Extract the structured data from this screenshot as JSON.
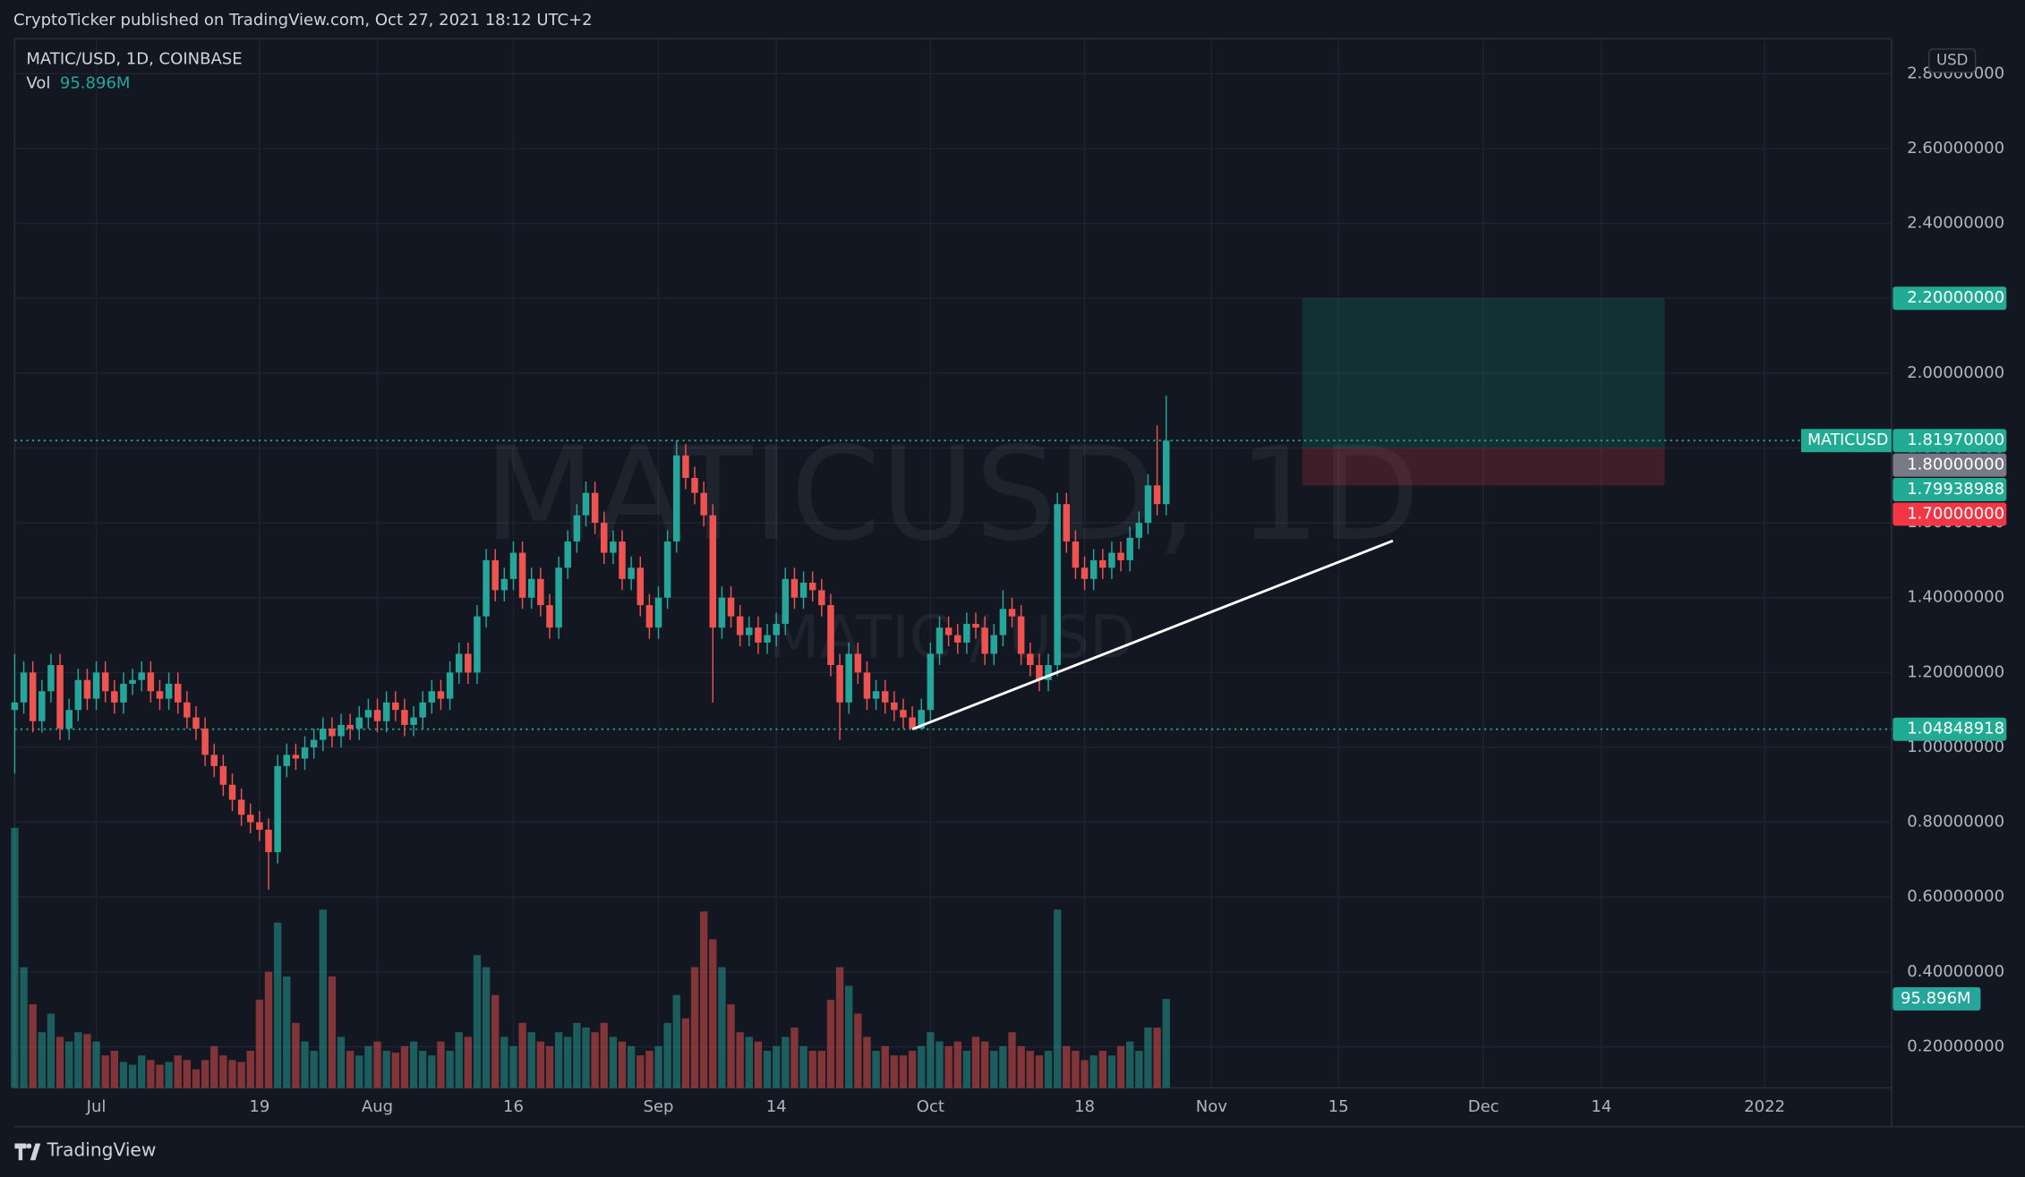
{
  "header": {
    "publisher": "CryptoTicker published on TradingView.com, Oct 27, 2021 18:12 UTC+2"
  },
  "footer": {
    "brand": "TradingView"
  },
  "chart_data": {
    "type": "candlestick",
    "title": "MATIC/USD, 1D, COINBASE",
    "currency": "USD",
    "up_color": "#26a69a",
    "down_color": "#ef5350",
    "grid": true,
    "watermark": {
      "title": "MATICUSD, 1D",
      "subtitle": "MATIC / USD"
    },
    "x": [
      "2021-06-22",
      "2021-06-23",
      "2021-06-24",
      "2021-06-25",
      "2021-06-26",
      "2021-06-27",
      "2021-06-28",
      "2021-06-29",
      "2021-06-30",
      "2021-07-01",
      "2021-07-02",
      "2021-07-03",
      "2021-07-04",
      "2021-07-05",
      "2021-07-06",
      "2021-07-07",
      "2021-07-08",
      "2021-07-09",
      "2021-07-10",
      "2021-07-11",
      "2021-07-12",
      "2021-07-13",
      "2021-07-14",
      "2021-07-15",
      "2021-07-16",
      "2021-07-17",
      "2021-07-18",
      "2021-07-19",
      "2021-07-20",
      "2021-07-21",
      "2021-07-22",
      "2021-07-23",
      "2021-07-24",
      "2021-07-25",
      "2021-07-26",
      "2021-07-27",
      "2021-07-28",
      "2021-07-29",
      "2021-07-30",
      "2021-07-31",
      "2021-08-01",
      "2021-08-02",
      "2021-08-03",
      "2021-08-04",
      "2021-08-05",
      "2021-08-06",
      "2021-08-07",
      "2021-08-08",
      "2021-08-09",
      "2021-08-10",
      "2021-08-11",
      "2021-08-12",
      "2021-08-13",
      "2021-08-14",
      "2021-08-15",
      "2021-08-16",
      "2021-08-17",
      "2021-08-18",
      "2021-08-19",
      "2021-08-20",
      "2021-08-21",
      "2021-08-22",
      "2021-08-23",
      "2021-08-24",
      "2021-08-25",
      "2021-08-26",
      "2021-08-27",
      "2021-08-28",
      "2021-08-29",
      "2021-08-30",
      "2021-08-31",
      "2021-09-01",
      "2021-09-02",
      "2021-09-03",
      "2021-09-04",
      "2021-09-05",
      "2021-09-06",
      "2021-09-07",
      "2021-09-08",
      "2021-09-09",
      "2021-09-10",
      "2021-09-11",
      "2021-09-12",
      "2021-09-13",
      "2021-09-14",
      "2021-09-15",
      "2021-09-16",
      "2021-09-17",
      "2021-09-18",
      "2021-09-19",
      "2021-09-20",
      "2021-09-21",
      "2021-09-22",
      "2021-09-23",
      "2021-09-24",
      "2021-09-25",
      "2021-09-26",
      "2021-09-27",
      "2021-09-28",
      "2021-09-29",
      "2021-09-30",
      "2021-10-01",
      "2021-10-02",
      "2021-10-03",
      "2021-10-04",
      "2021-10-05",
      "2021-10-06",
      "2021-10-07",
      "2021-10-08",
      "2021-10-09",
      "2021-10-10",
      "2021-10-11",
      "2021-10-12",
      "2021-10-13",
      "2021-10-14",
      "2021-10-15",
      "2021-10-16",
      "2021-10-17",
      "2021-10-18",
      "2021-10-19",
      "2021-10-20",
      "2021-10-21",
      "2021-10-22",
      "2021-10-23",
      "2021-10-24",
      "2021-10-25",
      "2021-10-26",
      "2021-10-27"
    ],
    "open": [
      1.1,
      1.12,
      1.2,
      1.07,
      1.15,
      1.22,
      1.05,
      1.1,
      1.18,
      1.13,
      1.2,
      1.15,
      1.12,
      1.17,
      1.18,
      1.2,
      1.15,
      1.13,
      1.17,
      1.12,
      1.08,
      1.05,
      0.98,
      0.95,
      0.9,
      0.86,
      0.82,
      0.8,
      0.78,
      0.72,
      0.95,
      0.98,
      0.97,
      1.0,
      1.02,
      1.05,
      1.03,
      1.06,
      1.05,
      1.08,
      1.1,
      1.07,
      1.12,
      1.1,
      1.06,
      1.08,
      1.12,
      1.15,
      1.13,
      1.2,
      1.25,
      1.2,
      1.35,
      1.5,
      1.42,
      1.45,
      1.52,
      1.4,
      1.45,
      1.38,
      1.32,
      1.48,
      1.55,
      1.62,
      1.68,
      1.6,
      1.52,
      1.55,
      1.45,
      1.48,
      1.38,
      1.32,
      1.4,
      1.55,
      1.78,
      1.72,
      1.68,
      1.62,
      1.32,
      1.4,
      1.35,
      1.3,
      1.32,
      1.28,
      1.3,
      1.33,
      1.45,
      1.4,
      1.44,
      1.42,
      1.38,
      1.22,
      1.12,
      1.25,
      1.2,
      1.13,
      1.15,
      1.12,
      1.1,
      1.08,
      1.05,
      1.1,
      1.25,
      1.32,
      1.3,
      1.28,
      1.33,
      1.32,
      1.25,
      1.3,
      1.37,
      1.35,
      1.25,
      1.22,
      1.18,
      1.22,
      1.65,
      1.55,
      1.48,
      1.45,
      1.5,
      1.48,
      1.52,
      1.5,
      1.56,
      1.6,
      1.7,
      1.65
    ],
    "high": [
      1.25,
      1.23,
      1.23,
      1.18,
      1.25,
      1.25,
      1.13,
      1.21,
      1.21,
      1.23,
      1.23,
      1.18,
      1.2,
      1.21,
      1.23,
      1.23,
      1.18,
      1.2,
      1.2,
      1.15,
      1.11,
      1.08,
      1.01,
      0.98,
      0.93,
      0.89,
      0.85,
      0.83,
      0.81,
      0.98,
      1.01,
      1.01,
      1.03,
      1.05,
      1.08,
      1.08,
      1.09,
      1.09,
      1.11,
      1.13,
      1.13,
      1.15,
      1.15,
      1.13,
      1.11,
      1.15,
      1.18,
      1.18,
      1.23,
      1.28,
      1.28,
      1.38,
      1.53,
      1.53,
      1.48,
      1.55,
      1.55,
      1.48,
      1.48,
      1.41,
      1.51,
      1.58,
      1.65,
      1.71,
      1.71,
      1.63,
      1.58,
      1.58,
      1.51,
      1.51,
      1.41,
      1.43,
      1.58,
      1.82,
      1.81,
      1.75,
      1.71,
      1.65,
      1.43,
      1.43,
      1.38,
      1.35,
      1.35,
      1.33,
      1.36,
      1.48,
      1.48,
      1.47,
      1.47,
      1.45,
      1.41,
      1.25,
      1.28,
      1.28,
      1.23,
      1.18,
      1.18,
      1.15,
      1.13,
      1.11,
      1.13,
      1.28,
      1.35,
      1.35,
      1.33,
      1.36,
      1.36,
      1.35,
      1.33,
      1.42,
      1.4,
      1.38,
      1.28,
      1.25,
      1.25,
      1.68,
      1.68,
      1.58,
      1.51,
      1.53,
      1.53,
      1.55,
      1.55,
      1.59,
      1.63,
      1.73,
      1.86,
      1.94
    ],
    "low": [
      0.93,
      1.09,
      1.04,
      1.04,
      1.12,
      1.02,
      1.02,
      1.07,
      1.1,
      1.1,
      1.12,
      1.09,
      1.09,
      1.14,
      1.15,
      1.12,
      1.1,
      1.1,
      1.09,
      1.05,
      1.02,
      0.95,
      0.92,
      0.87,
      0.83,
      0.79,
      0.77,
      0.75,
      0.62,
      0.69,
      0.92,
      0.94,
      0.94,
      0.97,
      0.99,
      1.0,
      1.0,
      1.02,
      1.02,
      1.05,
      1.04,
      1.04,
      1.07,
      1.03,
      1.03,
      1.05,
      1.09,
      1.1,
      1.1,
      1.17,
      1.17,
      1.17,
      1.32,
      1.39,
      1.39,
      1.42,
      1.37,
      1.37,
      1.35,
      1.29,
      1.29,
      1.45,
      1.52,
      1.59,
      1.57,
      1.49,
      1.49,
      1.42,
      1.42,
      1.35,
      1.29,
      1.29,
      1.37,
      1.52,
      1.69,
      1.65,
      1.59,
      1.12,
      1.29,
      1.32,
      1.27,
      1.27,
      1.25,
      1.25,
      1.27,
      1.3,
      1.37,
      1.37,
      1.39,
      1.35,
      1.19,
      1.02,
      1.09,
      1.17,
      1.1,
      1.1,
      1.09,
      1.07,
      1.05,
      1.05,
      1.05,
      1.07,
      1.22,
      1.27,
      1.25,
      1.25,
      1.29,
      1.22,
      1.22,
      1.27,
      1.32,
      1.22,
      1.19,
      1.15,
      1.15,
      1.19,
      1.52,
      1.45,
      1.42,
      1.42,
      1.45,
      1.45,
      1.47,
      1.47,
      1.53,
      1.57,
      1.62,
      1.62
    ],
    "close": [
      1.12,
      1.2,
      1.07,
      1.15,
      1.22,
      1.05,
      1.1,
      1.18,
      1.13,
      1.2,
      1.15,
      1.12,
      1.17,
      1.18,
      1.2,
      1.15,
      1.13,
      1.17,
      1.12,
      1.08,
      1.05,
      0.98,
      0.95,
      0.9,
      0.86,
      0.82,
      0.8,
      0.78,
      0.72,
      0.95,
      0.98,
      0.97,
      1.0,
      1.02,
      1.05,
      1.03,
      1.06,
      1.05,
      1.08,
      1.1,
      1.07,
      1.12,
      1.1,
      1.06,
      1.08,
      1.12,
      1.15,
      1.13,
      1.2,
      1.25,
      1.2,
      1.35,
      1.5,
      1.42,
      1.45,
      1.52,
      1.4,
      1.45,
      1.38,
      1.32,
      1.48,
      1.55,
      1.62,
      1.68,
      1.6,
      1.52,
      1.55,
      1.45,
      1.48,
      1.38,
      1.32,
      1.4,
      1.55,
      1.78,
      1.72,
      1.68,
      1.62,
      1.32,
      1.4,
      1.35,
      1.3,
      1.32,
      1.28,
      1.3,
      1.33,
      1.45,
      1.4,
      1.44,
      1.42,
      1.38,
      1.22,
      1.12,
      1.25,
      1.2,
      1.13,
      1.15,
      1.12,
      1.1,
      1.08,
      1.05,
      1.1,
      1.25,
      1.32,
      1.3,
      1.28,
      1.33,
      1.32,
      1.25,
      1.3,
      1.37,
      1.35,
      1.25,
      1.22,
      1.18,
      1.22,
      1.65,
      1.55,
      1.48,
      1.45,
      1.5,
      1.48,
      1.52,
      1.5,
      1.56,
      1.6,
      1.7,
      1.65,
      1.8197
    ],
    "volume_name": "Vol",
    "volume": [
      280,
      130,
      90,
      60,
      80,
      55,
      50,
      60,
      58,
      50,
      35,
      40,
      28,
      25,
      35,
      30,
      25,
      28,
      35,
      30,
      20,
      30,
      45,
      35,
      30,
      28,
      40,
      95,
      125,
      178,
      120,
      70,
      50,
      40,
      192,
      120,
      55,
      40,
      35,
      45,
      50,
      40,
      38,
      45,
      50,
      40,
      35,
      50,
      40,
      60,
      55,
      143,
      130,
      100,
      55,
      45,
      70,
      60,
      50,
      45,
      60,
      55,
      70,
      65,
      60,
      70,
      55,
      50,
      45,
      35,
      40,
      45,
      70,
      100,
      75,
      130,
      190,
      160,
      130,
      90,
      60,
      55,
      50,
      40,
      45,
      55,
      65,
      45,
      40,
      40,
      95,
      130,
      110,
      80,
      55,
      40,
      45,
      35,
      35,
      40,
      45,
      60,
      50,
      45,
      50,
      40,
      55,
      50,
      40,
      45,
      60,
      45,
      40,
      35,
      40,
      192,
      45,
      40,
      30,
      35,
      40,
      35,
      45,
      50,
      40,
      65,
      65,
      95.896
    ],
    "last_volume": {
      "value": 95.896,
      "label": "95.896M"
    },
    "volume_lim": [
      0,
      282
    ],
    "ylim": [
      0.09,
      2.89
    ],
    "yticks": [
      {
        "value": 0.2,
        "label": "0.20000000"
      },
      {
        "value": 0.4,
        "label": "0.40000000"
      },
      {
        "value": 0.6,
        "label": "0.60000000"
      },
      {
        "value": 0.8,
        "label": "0.80000000"
      },
      {
        "value": 1.0,
        "label": "1.00000000"
      },
      {
        "value": 1.2,
        "label": "1.20000000"
      },
      {
        "value": 1.4,
        "label": "1.40000000"
      },
      {
        "value": 1.6,
        "label": "1.60000000"
      },
      {
        "value": 1.8,
        "label": "1.80000000"
      },
      {
        "value": 2.0,
        "label": "2.00000000"
      },
      {
        "value": 2.2,
        "label": "2.20000000"
      },
      {
        "value": 2.4,
        "label": "2.40000000"
      },
      {
        "value": 2.6,
        "label": "2.60000000"
      },
      {
        "value": 2.8,
        "label": "2.80000000"
      }
    ],
    "xlim": [
      "2021-06-22",
      "2022-01-15"
    ],
    "xticks": [
      {
        "value": "2021-07-01",
        "label": "Jul"
      },
      {
        "value": "2021-07-19",
        "label": "19"
      },
      {
        "value": "2021-08-01",
        "label": "Aug"
      },
      {
        "value": "2021-08-16",
        "label": "16"
      },
      {
        "value": "2021-09-01",
        "label": "Sep"
      },
      {
        "value": "2021-09-14",
        "label": "14"
      },
      {
        "value": "2021-10-01",
        "label": "Oct"
      },
      {
        "value": "2021-10-18",
        "label": "18"
      },
      {
        "value": "2021-11-01",
        "label": "Nov"
      },
      {
        "value": "2021-11-15",
        "label": "15"
      },
      {
        "value": "2021-12-01",
        "label": "Dec"
      },
      {
        "value": "2021-12-14",
        "label": "14"
      },
      {
        "value": "2022-01-01",
        "label": "2022"
      }
    ],
    "price_tags": [
      {
        "value": 2.2,
        "label": "2.20000000",
        "color": "#22ab94"
      },
      {
        "value": 1.8197,
        "label": "1.81970000",
        "name": "MATICUSD",
        "color": "#22ab94",
        "dotted": true
      },
      {
        "value": 1.8,
        "label": "1.80000000",
        "color": "#787b86"
      },
      {
        "value": 1.79938988,
        "label": "1.79938988",
        "color": "#22ab94"
      },
      {
        "value": 1.7,
        "label": "1.70000000",
        "color": "#f23645"
      },
      {
        "value": 1.04848918,
        "label": "1.04848918",
        "color": "#22ab94",
        "dotted": true
      }
    ],
    "position": {
      "start": "2021-11-11",
      "end": "2021-12-21",
      "entry": 1.8,
      "target": 2.2,
      "stop": 1.7
    },
    "trendline": {
      "x": [
        "2021-09-29",
        "2021-11-21"
      ],
      "y": [
        1.0485,
        1.552
      ],
      "color": "#ffffff"
    }
  }
}
